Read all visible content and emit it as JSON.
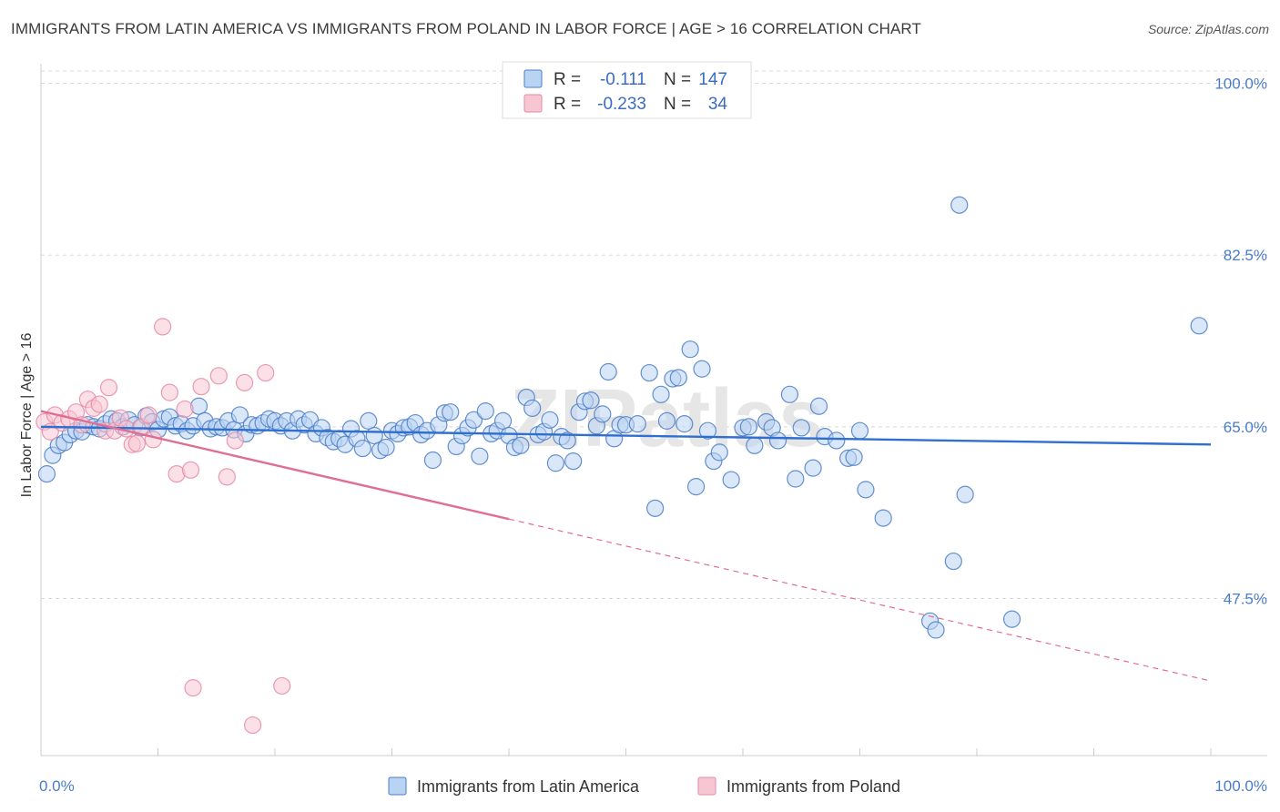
{
  "title": "IMMIGRANTS FROM LATIN AMERICA VS IMMIGRANTS FROM POLAND IN LABOR FORCE | AGE > 16 CORRELATION CHART",
  "source": "Source: ZipAtlas.com",
  "watermark": "ZIPatlas",
  "stats": [
    {
      "r_label": "R =",
      "r_value": "-0.111",
      "n_label": "N =",
      "n_value": "147",
      "color": "#4a7cc7",
      "fill": "#b9d3f3"
    },
    {
      "r_label": "R =",
      "r_value": "-0.233",
      "n_label": "N =",
      "n_value": "34",
      "color": "#e68aa5",
      "fill": "#f7c6d3"
    }
  ],
  "chart_data": {
    "type": "scatter",
    "ylabel": "In Labor Force | Age > 16",
    "x_tick_labels": [
      "0.0%",
      "100.0%"
    ],
    "y_tick_labels": [
      "100.0%",
      "82.5%",
      "65.0%",
      "47.5%"
    ],
    "y_ticks": [
      100,
      82.5,
      65,
      47.5
    ],
    "xlim": [
      0,
      100
    ],
    "ylim": [
      31.5,
      102
    ],
    "series": [
      {
        "name": "Immigrants from Latin America",
        "color": "#4a7cc7",
        "fill": "#b9d3f3",
        "trend": {
          "x1": 0,
          "y1": 65.0,
          "x2": 100,
          "y2": 63.2,
          "dash_from": 100
        },
        "points": [
          [
            0.5,
            60.2
          ],
          [
            1,
            62.1
          ],
          [
            1.5,
            63.1
          ],
          [
            2,
            63.4
          ],
          [
            2.5,
            64.2
          ],
          [
            3,
            64.6
          ],
          [
            3.5,
            64.5
          ],
          [
            4,
            65.2
          ],
          [
            4.5,
            65.0
          ],
          [
            5,
            64.8
          ],
          [
            5.5,
            65.3
          ],
          [
            6,
            65.8
          ],
          [
            6.5,
            65.6
          ],
          [
            7,
            65.0
          ],
          [
            7.5,
            65.7
          ],
          [
            8,
            65.2
          ],
          [
            8.5,
            64.9
          ],
          [
            9,
            66.1
          ],
          [
            9.5,
            65.5
          ],
          [
            10,
            64.7
          ],
          [
            10.5,
            65.8
          ],
          [
            11,
            66.0
          ],
          [
            11.5,
            65.1
          ],
          [
            12,
            65.3
          ],
          [
            12.5,
            64.6
          ],
          [
            13,
            65.1
          ],
          [
            13.5,
            67.1
          ],
          [
            14,
            65.6
          ],
          [
            14.5,
            64.8
          ],
          [
            15,
            65.0
          ],
          [
            15.5,
            64.9
          ],
          [
            16,
            65.6
          ],
          [
            16.5,
            64.7
          ],
          [
            17,
            66.2
          ],
          [
            17.5,
            64.3
          ],
          [
            18,
            65.2
          ],
          [
            18.5,
            65.1
          ],
          [
            19,
            65.4
          ],
          [
            19.5,
            65.8
          ],
          [
            20,
            65.6
          ],
          [
            20.5,
            65.1
          ],
          [
            21,
            65.6
          ],
          [
            21.5,
            64.6
          ],
          [
            22,
            65.8
          ],
          [
            22.5,
            65.2
          ],
          [
            23,
            65.7
          ],
          [
            23.5,
            64.3
          ],
          [
            24,
            64.9
          ],
          [
            24.5,
            63.9
          ],
          [
            25,
            63.5
          ],
          [
            25.5,
            63.8
          ],
          [
            26,
            63.2
          ],
          [
            26.5,
            64.8
          ],
          [
            27,
            63.8
          ],
          [
            27.5,
            62.8
          ],
          [
            28,
            65.6
          ],
          [
            28.5,
            64.1
          ],
          [
            29,
            62.6
          ],
          [
            29.5,
            62.9
          ],
          [
            30,
            64.6
          ],
          [
            30.5,
            64.3
          ],
          [
            31,
            64.9
          ],
          [
            31.5,
            65.0
          ],
          [
            32,
            65.4
          ],
          [
            32.5,
            64.2
          ],
          [
            33,
            64.6
          ],
          [
            33.5,
            61.6
          ],
          [
            34,
            65.2
          ],
          [
            34.5,
            66.4
          ],
          [
            35,
            66.5
          ],
          [
            35.5,
            63.0
          ],
          [
            36,
            64.1
          ],
          [
            36.5,
            64.9
          ],
          [
            37,
            65.7
          ],
          [
            37.5,
            62.0
          ],
          [
            38,
            66.6
          ],
          [
            38.5,
            64.3
          ],
          [
            39,
            64.6
          ],
          [
            39.5,
            65.6
          ],
          [
            40,
            64.1
          ],
          [
            40.5,
            62.9
          ],
          [
            41,
            63.1
          ],
          [
            41.5,
            68.0
          ],
          [
            42,
            66.9
          ],
          [
            42.5,
            64.2
          ],
          [
            43,
            64.5
          ],
          [
            43.5,
            65.7
          ],
          [
            44,
            61.3
          ],
          [
            44.5,
            64.0
          ],
          [
            45,
            63.6
          ],
          [
            45.5,
            61.5
          ],
          [
            46,
            66.5
          ],
          [
            46.5,
            67.6
          ],
          [
            47,
            67.7
          ],
          [
            47.5,
            65.1
          ],
          [
            48,
            66.3
          ],
          [
            48.5,
            70.6
          ],
          [
            49,
            63.8
          ],
          [
            49.5,
            65.2
          ],
          [
            50,
            65.2
          ],
          [
            51,
            65.3
          ],
          [
            52,
            70.5
          ],
          [
            52.5,
            56.7
          ],
          [
            53,
            68.3
          ],
          [
            53.5,
            65.6
          ],
          [
            54,
            69.9
          ],
          [
            54.5,
            70.0
          ],
          [
            55,
            65.3
          ],
          [
            55.5,
            72.9
          ],
          [
            56,
            58.9
          ],
          [
            56.5,
            70.9
          ],
          [
            57,
            64.6
          ],
          [
            57.5,
            61.5
          ],
          [
            58,
            62.4
          ],
          [
            59,
            59.6
          ],
          [
            60,
            64.9
          ],
          [
            60.5,
            65.0
          ],
          [
            61,
            63.1
          ],
          [
            62,
            65.5
          ],
          [
            62.5,
            64.9
          ],
          [
            63,
            63.6
          ],
          [
            64,
            68.3
          ],
          [
            64.5,
            59.7
          ],
          [
            65,
            64.9
          ],
          [
            66,
            60.8
          ],
          [
            66.5,
            67.1
          ],
          [
            67,
            64.0
          ],
          [
            68,
            63.6
          ],
          [
            69,
            61.8
          ],
          [
            69.5,
            61.9
          ],
          [
            70,
            64.6
          ],
          [
            70.5,
            58.6
          ],
          [
            72,
            55.7
          ],
          [
            76,
            45.2
          ],
          [
            78,
            51.3
          ],
          [
            78.5,
            87.6
          ],
          [
            79,
            58.1
          ],
          [
            83,
            45.4
          ],
          [
            76.5,
            44.3
          ],
          [
            99,
            75.3
          ]
        ]
      },
      {
        "name": "Immigrants from Poland",
        "color": "#e68aa5",
        "fill": "#f7c6d3",
        "trend": {
          "x1": 0,
          "y1": 66.6,
          "x2": 100,
          "y2": 39.1,
          "dash_from": 40
        },
        "points": [
          [
            0.3,
            65.5
          ],
          [
            0.8,
            64.5
          ],
          [
            1.2,
            66.2
          ],
          [
            1.8,
            65.4
          ],
          [
            2.4,
            65.8
          ],
          [
            3,
            66.5
          ],
          [
            3.5,
            65.2
          ],
          [
            4,
            67.8
          ],
          [
            4.5,
            66.9
          ],
          [
            5,
            67.3
          ],
          [
            5.5,
            64.6
          ],
          [
            5.8,
            69.0
          ],
          [
            6.3,
            64.6
          ],
          [
            6.8,
            65.9
          ],
          [
            7.3,
            64.8
          ],
          [
            7.8,
            63.2
          ],
          [
            8.2,
            63.3
          ],
          [
            8.6,
            65.0
          ],
          [
            9.2,
            66.2
          ],
          [
            9.6,
            63.7
          ],
          [
            10.4,
            75.2
          ],
          [
            11.0,
            68.5
          ],
          [
            11.6,
            60.2
          ],
          [
            12.3,
            66.8
          ],
          [
            12.8,
            60.6
          ],
          [
            13.0,
            38.4
          ],
          [
            13.7,
            69.1
          ],
          [
            15.2,
            70.2
          ],
          [
            15.9,
            59.9
          ],
          [
            16.6,
            63.6
          ],
          [
            17.4,
            69.5
          ],
          [
            18.1,
            34.6
          ],
          [
            19.2,
            70.5
          ],
          [
            20.6,
            38.6
          ]
        ]
      }
    ]
  },
  "legend": {
    "items": [
      "Immigrants from Latin America",
      "Immigrants from Poland"
    ]
  }
}
